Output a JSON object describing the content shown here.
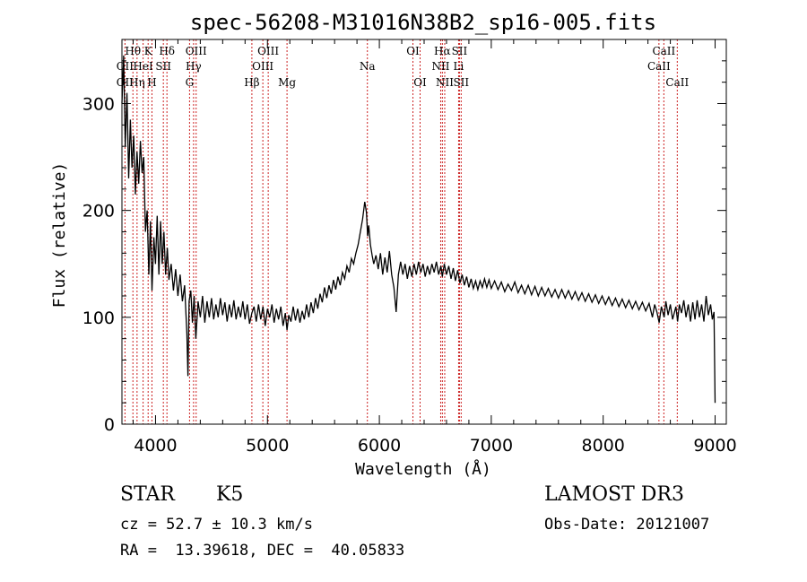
{
  "chart_data": {
    "type": "line",
    "title": "spec-56208-M31016N38B2_sp16-005.fits",
    "xlabel": "Wavelength (Å)",
    "ylabel": "Flux (relative)",
    "xlim": [
      3700,
      9100
    ],
    "ylim": [
      0,
      360
    ],
    "xticks": [
      4000,
      5000,
      6000,
      7000,
      8000,
      9000
    ],
    "yticks": [
      0,
      100,
      200,
      300
    ],
    "grid": false,
    "series": [
      {
        "name": "",
        "color": "#000000",
        "points": [
          [
            3700,
            300
          ],
          [
            3715,
            345
          ],
          [
            3730,
            260
          ],
          [
            3745,
            310
          ],
          [
            3760,
            230
          ],
          [
            3775,
            285
          ],
          [
            3790,
            240
          ],
          [
            3805,
            270
          ],
          [
            3820,
            215
          ],
          [
            3835,
            255
          ],
          [
            3850,
            225
          ],
          [
            3865,
            265
          ],
          [
            3880,
            235
          ],
          [
            3895,
            250
          ],
          [
            3910,
            180
          ],
          [
            3925,
            200
          ],
          [
            3940,
            140
          ],
          [
            3955,
            190
          ],
          [
            3968,
            125
          ],
          [
            3985,
            175
          ],
          [
            4000,
            150
          ],
          [
            4015,
            195
          ],
          [
            4030,
            140
          ],
          [
            4045,
            190
          ],
          [
            4060,
            150
          ],
          [
            4075,
            180
          ],
          [
            4090,
            140
          ],
          [
            4105,
            165
          ],
          [
            4120,
            135
          ],
          [
            4140,
            150
          ],
          [
            4160,
            125
          ],
          [
            4180,
            145
          ],
          [
            4200,
            120
          ],
          [
            4220,
            140
          ],
          [
            4240,
            115
          ],
          [
            4260,
            130
          ],
          [
            4280,
            85
          ],
          [
            4290,
            45
          ],
          [
            4300,
            115
          ],
          [
            4315,
            125
          ],
          [
            4330,
            95
          ],
          [
            4345,
            120
          ],
          [
            4360,
            80
          ],
          [
            4380,
            115
          ],
          [
            4400,
            100
          ],
          [
            4420,
            120
          ],
          [
            4440,
            95
          ],
          [
            4460,
            115
          ],
          [
            4480,
            100
          ],
          [
            4500,
            118
          ],
          [
            4520,
            98
          ],
          [
            4540,
            112
          ],
          [
            4560,
            100
          ],
          [
            4580,
            118
          ],
          [
            4600,
            102
          ],
          [
            4620,
            114
          ],
          [
            4640,
            96
          ],
          [
            4660,
            112
          ],
          [
            4680,
            100
          ],
          [
            4700,
            116
          ],
          [
            4720,
            98
          ],
          [
            4740,
            110
          ],
          [
            4760,
            100
          ],
          [
            4780,
            115
          ],
          [
            4800,
            98
          ],
          [
            4820,
            112
          ],
          [
            4840,
            94
          ],
          [
            4861,
            104
          ],
          [
            4880,
            110
          ],
          [
            4900,
            96
          ],
          [
            4920,
            112
          ],
          [
            4940,
            98
          ],
          [
            4960,
            110
          ],
          [
            4980,
            92
          ],
          [
            5000,
            108
          ],
          [
            5020,
            100
          ],
          [
            5040,
            112
          ],
          [
            5060,
            95
          ],
          [
            5080,
            108
          ],
          [
            5100,
            98
          ],
          [
            5120,
            110
          ],
          [
            5140,
            92
          ],
          [
            5160,
            104
          ],
          [
            5175,
            88
          ],
          [
            5190,
            102
          ],
          [
            5210,
            96
          ],
          [
            5230,
            110
          ],
          [
            5250,
            97
          ],
          [
            5270,
            108
          ],
          [
            5290,
            95
          ],
          [
            5310,
            106
          ],
          [
            5330,
            98
          ],
          [
            5350,
            112
          ],
          [
            5370,
            100
          ],
          [
            5390,
            114
          ],
          [
            5410,
            104
          ],
          [
            5430,
            118
          ],
          [
            5450,
            108
          ],
          [
            5470,
            122
          ],
          [
            5490,
            114
          ],
          [
            5510,
            128
          ],
          [
            5530,
            118
          ],
          [
            5550,
            130
          ],
          [
            5570,
            122
          ],
          [
            5590,
            135
          ],
          [
            5610,
            126
          ],
          [
            5630,
            138
          ],
          [
            5650,
            130
          ],
          [
            5670,
            142
          ],
          [
            5690,
            136
          ],
          [
            5710,
            148
          ],
          [
            5730,
            142
          ],
          [
            5750,
            155
          ],
          [
            5770,
            150
          ],
          [
            5790,
            160
          ],
          [
            5810,
            168
          ],
          [
            5830,
            180
          ],
          [
            5850,
            192
          ],
          [
            5870,
            208
          ],
          [
            5885,
            198
          ],
          [
            5895,
            176
          ],
          [
            5905,
            186
          ],
          [
            5920,
            168
          ],
          [
            5935,
            158
          ],
          [
            5950,
            150
          ],
          [
            5970,
            158
          ],
          [
            5990,
            145
          ],
          [
            6010,
            160
          ],
          [
            6030,
            140
          ],
          [
            6050,
            156
          ],
          [
            6070,
            142
          ],
          [
            6090,
            162
          ],
          [
            6110,
            140
          ],
          [
            6130,
            128
          ],
          [
            6150,
            105
          ],
          [
            6170,
            140
          ],
          [
            6190,
            152
          ],
          [
            6210,
            140
          ],
          [
            6230,
            150
          ],
          [
            6250,
            136
          ],
          [
            6270,
            148
          ],
          [
            6290,
            138
          ],
          [
            6310,
            150
          ],
          [
            6330,
            140
          ],
          [
            6350,
            152
          ],
          [
            6370,
            142
          ],
          [
            6390,
            150
          ],
          [
            6410,
            138
          ],
          [
            6430,
            148
          ],
          [
            6450,
            140
          ],
          [
            6470,
            150
          ],
          [
            6490,
            142
          ],
          [
            6510,
            152
          ],
          [
            6530,
            140
          ],
          [
            6550,
            148
          ],
          [
            6563,
            138
          ],
          [
            6580,
            150
          ],
          [
            6600,
            140
          ],
          [
            6620,
            148
          ],
          [
            6640,
            136
          ],
          [
            6660,
            146
          ],
          [
            6680,
            134
          ],
          [
            6700,
            144
          ],
          [
            6720,
            132
          ],
          [
            6740,
            140
          ],
          [
            6760,
            130
          ],
          [
            6780,
            138
          ],
          [
            6800,
            128
          ],
          [
            6820,
            136
          ],
          [
            6840,
            127
          ],
          [
            6860,
            134
          ],
          [
            6880,
            126
          ],
          [
            6900,
            134
          ],
          [
            6920,
            128
          ],
          [
            6940,
            136
          ],
          [
            6960,
            128
          ],
          [
            6980,
            135
          ],
          [
            7000,
            127
          ],
          [
            7030,
            134
          ],
          [
            7060,
            126
          ],
          [
            7090,
            133
          ],
          [
            7120,
            124
          ],
          [
            7150,
            131
          ],
          [
            7180,
            125
          ],
          [
            7210,
            133
          ],
          [
            7240,
            123
          ],
          [
            7270,
            130
          ],
          [
            7300,
            122
          ],
          [
            7330,
            130
          ],
          [
            7360,
            121
          ],
          [
            7390,
            129
          ],
          [
            7420,
            120
          ],
          [
            7450,
            128
          ],
          [
            7480,
            120
          ],
          [
            7510,
            127
          ],
          [
            7540,
            119
          ],
          [
            7570,
            126
          ],
          [
            7600,
            118
          ],
          [
            7630,
            126
          ],
          [
            7660,
            118
          ],
          [
            7690,
            125
          ],
          [
            7720,
            117
          ],
          [
            7750,
            124
          ],
          [
            7780,
            116
          ],
          [
            7810,
            123
          ],
          [
            7840,
            115
          ],
          [
            7870,
            122
          ],
          [
            7900,
            114
          ],
          [
            7930,
            121
          ],
          [
            7960,
            113
          ],
          [
            7990,
            120
          ],
          [
            8020,
            112
          ],
          [
            8050,
            119
          ],
          [
            8080,
            111
          ],
          [
            8110,
            118
          ],
          [
            8140,
            110
          ],
          [
            8170,
            117
          ],
          [
            8200,
            109
          ],
          [
            8230,
            116
          ],
          [
            8260,
            108
          ],
          [
            8290,
            115
          ],
          [
            8320,
            107
          ],
          [
            8350,
            114
          ],
          [
            8380,
            106
          ],
          [
            8410,
            113
          ],
          [
            8440,
            100
          ],
          [
            8460,
            112
          ],
          [
            8480,
            105
          ],
          [
            8500,
            95
          ],
          [
            8520,
            110
          ],
          [
            8545,
            100
          ],
          [
            8560,
            115
          ],
          [
            8580,
            102
          ],
          [
            8600,
            112
          ],
          [
            8620,
            98
          ],
          [
            8650,
            110
          ],
          [
            8665,
            96
          ],
          [
            8680,
            112
          ],
          [
            8700,
            104
          ],
          [
            8720,
            116
          ],
          [
            8740,
            100
          ],
          [
            8760,
            112
          ],
          [
            8780,
            96
          ],
          [
            8800,
            114
          ],
          [
            8820,
            98
          ],
          [
            8840,
            116
          ],
          [
            8860,
            100
          ],
          [
            8880,
            112
          ],
          [
            8900,
            96
          ],
          [
            8920,
            120
          ],
          [
            8940,
            102
          ],
          [
            8960,
            112
          ],
          [
            8975,
            98
          ],
          [
            8990,
            105
          ],
          [
            9000,
            20
          ]
        ]
      }
    ],
    "line_labels": [
      {
        "label": "Hθ",
        "wavelength": 3798,
        "row": 0
      },
      {
        "label": "OII",
        "wavelength": 3727,
        "row": 1
      },
      {
        "label": "OII",
        "wavelength": 3727,
        "row": 2
      },
      {
        "label": "HeI",
        "wavelength": 3889,
        "row": 1
      },
      {
        "label": "Hη",
        "wavelength": 3835,
        "row": 2
      },
      {
        "label": "K",
        "wavelength": 3934,
        "row": 0
      },
      {
        "label": "SII",
        "wavelength": 4070,
        "row": 1
      },
      {
        "label": "H",
        "wavelength": 3968,
        "row": 2
      },
      {
        "label": "Hδ",
        "wavelength": 4102,
        "row": 0
      },
      {
        "label": "OIII",
        "wavelength": 4363,
        "row": 0
      },
      {
        "label": "Hγ",
        "wavelength": 4340,
        "row": 1
      },
      {
        "label": "G",
        "wavelength": 4304,
        "row": 2
      },
      {
        "label": "OIII",
        "wavelength": 5007,
        "row": 0
      },
      {
        "label": "OIII",
        "wavelength": 4959,
        "row": 1
      },
      {
        "label": "Hβ",
        "wavelength": 4861,
        "row": 2
      },
      {
        "label": "Mg",
        "wavelength": 5175,
        "row": 2
      },
      {
        "label": "Na",
        "wavelength": 5893,
        "row": 1
      },
      {
        "label": "OI",
        "wavelength": 6300,
        "row": 0
      },
      {
        "label": "OI",
        "wavelength": 6364,
        "row": 2
      },
      {
        "label": "Hα",
        "wavelength": 6563,
        "row": 0
      },
      {
        "label": "SII",
        "wavelength": 6716,
        "row": 0
      },
      {
        "label": "NII",
        "wavelength": 6548,
        "row": 1
      },
      {
        "label": "Li",
        "wavelength": 6708,
        "row": 1
      },
      {
        "label": "NII",
        "wavelength": 6584,
        "row": 2
      },
      {
        "label": "SII",
        "wavelength": 6731,
        "row": 2
      },
      {
        "label": "CaII",
        "wavelength": 8542,
        "row": 0
      },
      {
        "label": "CaII",
        "wavelength": 8498,
        "row": 1
      },
      {
        "label": "CaII",
        "wavelength": 8662,
        "row": 2
      }
    ],
    "line_marker_color": "#cc2222"
  },
  "info": {
    "class": "STAR",
    "subclass": "K5",
    "survey": "LAMOST DR3",
    "cz": "cz = 52.7 ± 10.3 km/s",
    "obs_date": "Obs-Date: 20121007",
    "radec": "RA =  13.39618, DEC =  40.05833"
  }
}
